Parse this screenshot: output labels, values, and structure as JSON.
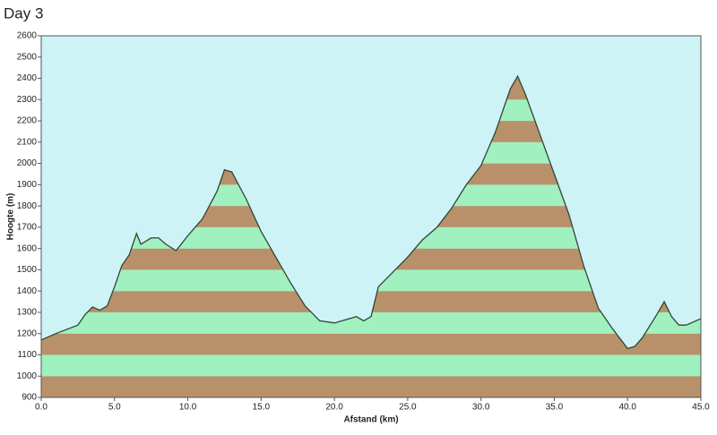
{
  "chart_data": {
    "type": "area",
    "title": "Day 3",
    "x_label": "Afstand  (km)",
    "y_label": "Hoogte (m)",
    "x": [
      0,
      1,
      2.5,
      3,
      3.5,
      4,
      4.5,
      5,
      5.5,
      6,
      6.5,
      6.8,
      7.5,
      8,
      8.5,
      9.2,
      10,
      11,
      12,
      12.5,
      13,
      14,
      15,
      16,
      17,
      18,
      19,
      20,
      21,
      21.5,
      22,
      22.5,
      23,
      24,
      25,
      26,
      27,
      28,
      29,
      30,
      31,
      32,
      32.5,
      33,
      34,
      35,
      36,
      37,
      38,
      39,
      40,
      40.5,
      41,
      42,
      42.5,
      43,
      43.5,
      44,
      45
    ],
    "values": [
      1170,
      1200,
      1240,
      1290,
      1325,
      1310,
      1330,
      1420,
      1520,
      1570,
      1670,
      1620,
      1650,
      1650,
      1620,
      1590,
      1660,
      1740,
      1870,
      1970,
      1960,
      1830,
      1680,
      1560,
      1440,
      1330,
      1260,
      1250,
      1270,
      1280,
      1260,
      1280,
      1420,
      1490,
      1560,
      1640,
      1700,
      1790,
      1900,
      1990,
      2150,
      2350,
      2410,
      2330,
      2140,
      1950,
      1760,
      1520,
      1320,
      1220,
      1130,
      1140,
      1180,
      1290,
      1350,
      1280,
      1240,
      1240,
      1270
    ],
    "xlim": [
      0,
      45
    ],
    "ylim": [
      900,
      2600
    ],
    "xticks": [
      {
        "value": 0,
        "label": "0.0"
      },
      {
        "value": 5,
        "label": "5.0"
      },
      {
        "value": 10,
        "label": "10.0"
      },
      {
        "value": 15,
        "label": "15.0"
      },
      {
        "value": 20,
        "label": "20.0"
      },
      {
        "value": 25,
        "label": "25.0"
      },
      {
        "value": 30,
        "label": "30.0"
      },
      {
        "value": 35,
        "label": "35.0"
      },
      {
        "value": 40,
        "label": "40.0"
      },
      {
        "value": 45,
        "label": "45.0"
      }
    ],
    "yticks": [
      900,
      1000,
      1100,
      1200,
      1300,
      1400,
      1500,
      1600,
      1700,
      1800,
      1900,
      2000,
      2100,
      2200,
      2300,
      2400,
      2500,
      2600
    ],
    "stripe_colors": [
      "#b8916a",
      "#a0f0c0"
    ],
    "line_color": "#334433",
    "background": "#cdf3f7"
  }
}
